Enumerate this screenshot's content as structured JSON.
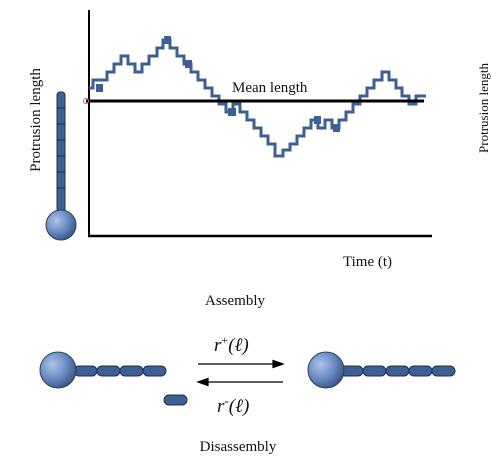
{
  "labels": {
    "y_axis": "Protrusion length",
    "x_axis": "Time (t)",
    "mean": "Mean length",
    "right_cropped": "Protrusion length",
    "assembly": "Assembly",
    "disassembly": "Disassembly",
    "rate_plus_main": "r",
    "rate_plus_sup": "+",
    "rate_plus_arg": "(ℓ)",
    "rate_minus_main": "r",
    "rate_minus_sup": "-",
    "rate_minus_arg": "(ℓ)"
  },
  "colors": {
    "trace": "#3d5f94",
    "segment": "#3d5f94",
    "bead": "#6b8cc4",
    "axis": "#000000",
    "mean_line": "#000000"
  }
}
